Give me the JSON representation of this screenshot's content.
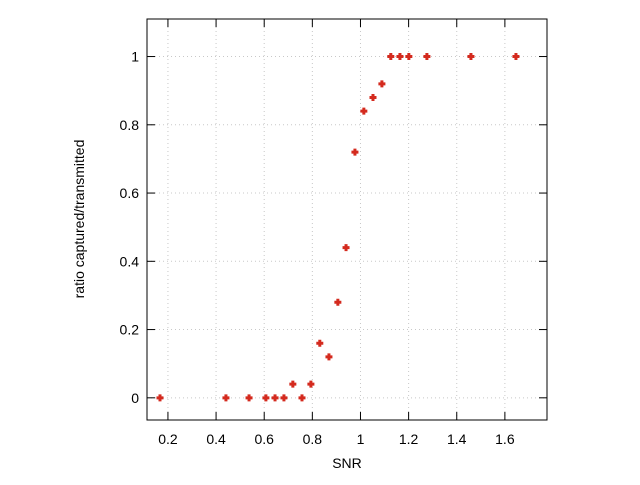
{
  "chart_data": {
    "type": "scatter",
    "x_label": "SNR",
    "y_label": "ratio captured/transmitted",
    "series": [
      {
        "color": "#d42a1e",
        "x": [
          0.167,
          0.441,
          0.537,
          0.607,
          0.645,
          0.682,
          0.719,
          0.757,
          0.794,
          0.831,
          0.869,
          0.906,
          0.94,
          0.977,
          1.014,
          1.052,
          1.089,
          1.126,
          1.164,
          1.201,
          1.276,
          1.459,
          1.646
        ],
        "values": [
          0,
          0,
          0,
          0,
          0,
          0,
          0.04,
          0,
          0.04,
          0.16,
          0.12,
          0.28,
          0.44,
          0.72,
          0.84,
          0.88,
          0.92,
          1,
          1,
          1,
          1,
          1,
          1
        ]
      }
    ],
    "xlim": [
      0.113,
      1.775
    ],
    "ylim": [
      -0.065,
      1.11
    ],
    "xticks": [
      0.2,
      0.4,
      0.6,
      0.8,
      1,
      1.2,
      1.4,
      1.6
    ],
    "yticks": [
      0,
      0.2,
      0.4,
      0.6,
      0.8,
      1
    ],
    "grid": true
  }
}
